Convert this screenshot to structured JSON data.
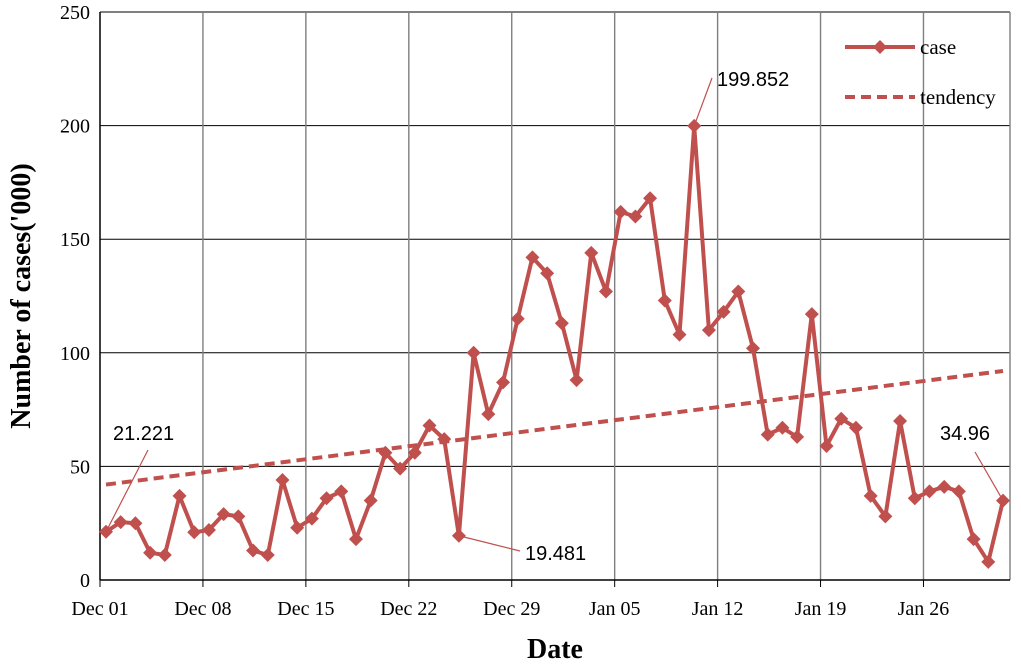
{
  "chart_data": {
    "type": "line",
    "xlabel": "Date",
    "ylabel": "Number of cases('000)",
    "ylim": [
      0,
      250
    ],
    "yticks": [
      0,
      50,
      100,
      150,
      200,
      250
    ],
    "xtick_labels": [
      "Dec 01",
      "Dec 08",
      "Dec 15",
      "Dec 22",
      "Dec 29",
      "Jan 05",
      "Jan 12",
      "Jan 19",
      "Jan 26"
    ],
    "x_start": "Dec 01",
    "x_end": "Jan 31",
    "grid": true,
    "legend_position": "top-right",
    "series": [
      {
        "name": "case",
        "style": "solid line with diamond markers",
        "color": "#c0504d",
        "values": [
          21.221,
          25.5,
          25,
          12,
          11,
          37,
          21,
          22,
          29,
          28,
          13,
          11,
          44,
          23,
          27,
          36,
          39,
          18,
          35,
          56,
          49,
          56,
          68,
          62,
          19.481,
          100,
          73,
          87,
          115,
          142,
          135,
          113,
          88,
          144,
          127,
          162,
          160,
          168,
          123,
          108,
          199.852,
          110,
          118,
          127,
          102,
          64,
          67,
          63,
          117,
          59,
          71,
          67,
          37,
          28,
          70,
          36,
          39,
          41,
          39,
          18,
          8,
          34.96
        ]
      },
      {
        "name": "tendency",
        "style": "dashed trend line",
        "color": "#c0504d",
        "start_value": 42,
        "end_value": 92
      }
    ],
    "annotations": [
      {
        "text": "21.221",
        "index": 0
      },
      {
        "text": "19.481",
        "index": 24
      },
      {
        "text": "199.852",
        "index": 40
      },
      {
        "text": "34.96",
        "index": 61
      }
    ]
  }
}
